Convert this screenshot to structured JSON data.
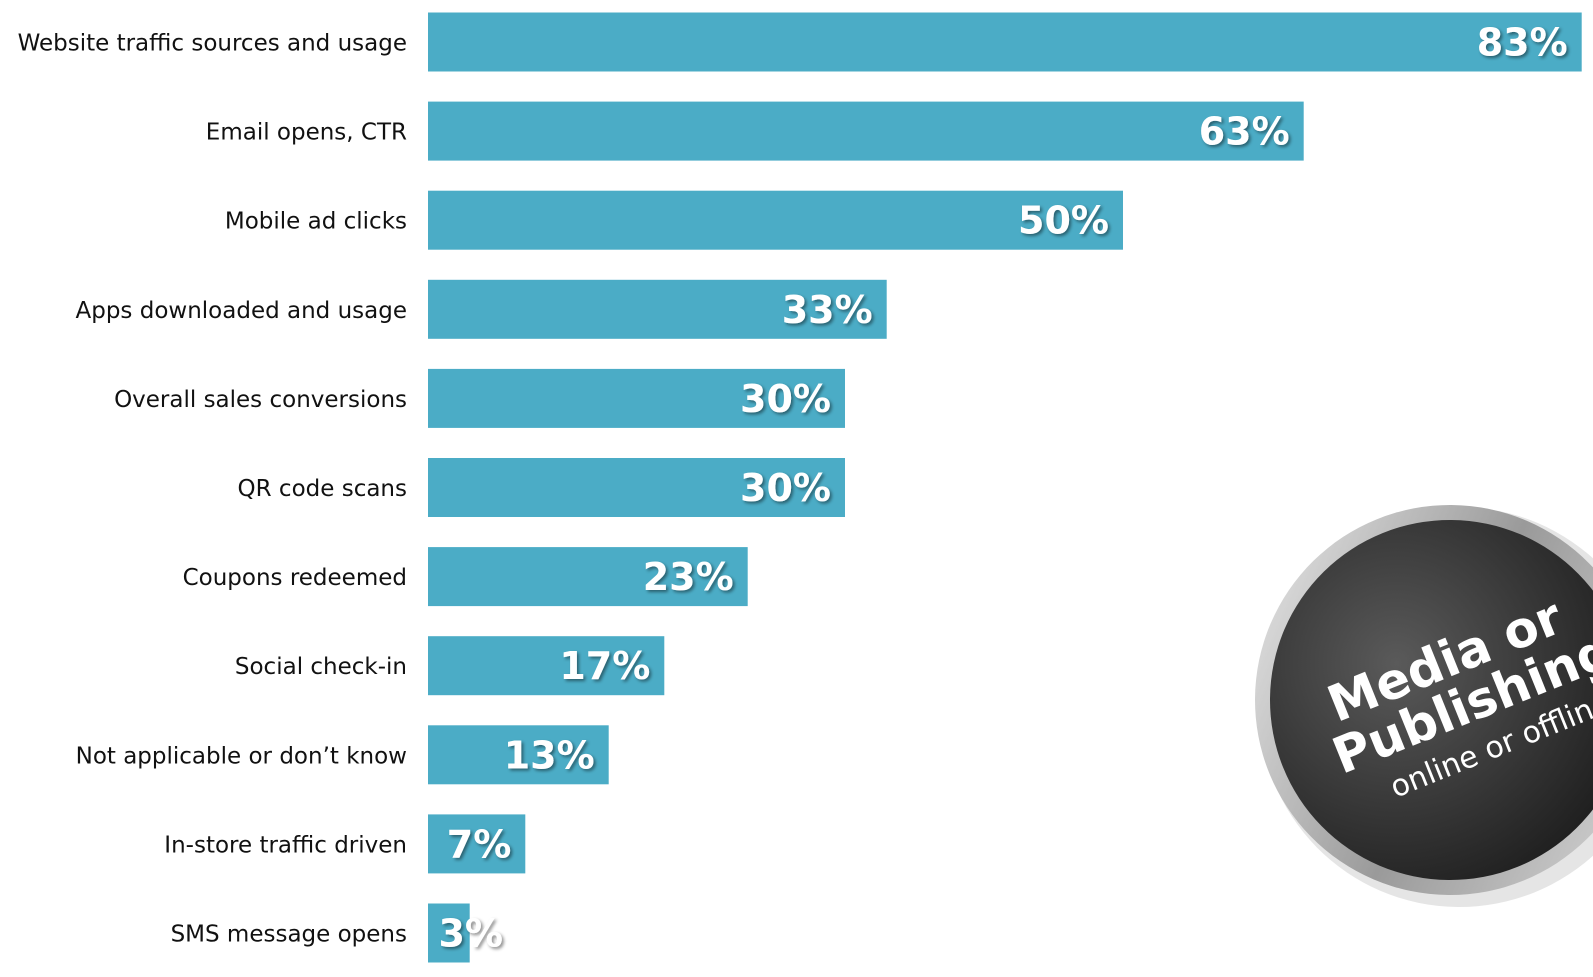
{
  "chart_data": {
    "type": "bar",
    "orientation": "horizontal",
    "color": "#4bacc6",
    "categories": [
      "Website traffic sources and usage",
      "Email opens, CTR",
      "Mobile ad clicks",
      "Apps downloaded and usage",
      "Overall sales conversions",
      "QR code scans",
      "Coupons redeemed",
      "Social check-in",
      "Not applicable or don’t know",
      "In-store traffic driven",
      "SMS message opens"
    ],
    "values": [
      83,
      63,
      50,
      33,
      30,
      30,
      23,
      17,
      13,
      7,
      3
    ],
    "value_labels": [
      "83%",
      "63%",
      "50%",
      "33%",
      "30%",
      "30%",
      "23%",
      "17%",
      "13%",
      "7%",
      "3%"
    ],
    "annotations": [
      "Media or",
      "Publishing",
      "online or offline"
    ]
  }
}
